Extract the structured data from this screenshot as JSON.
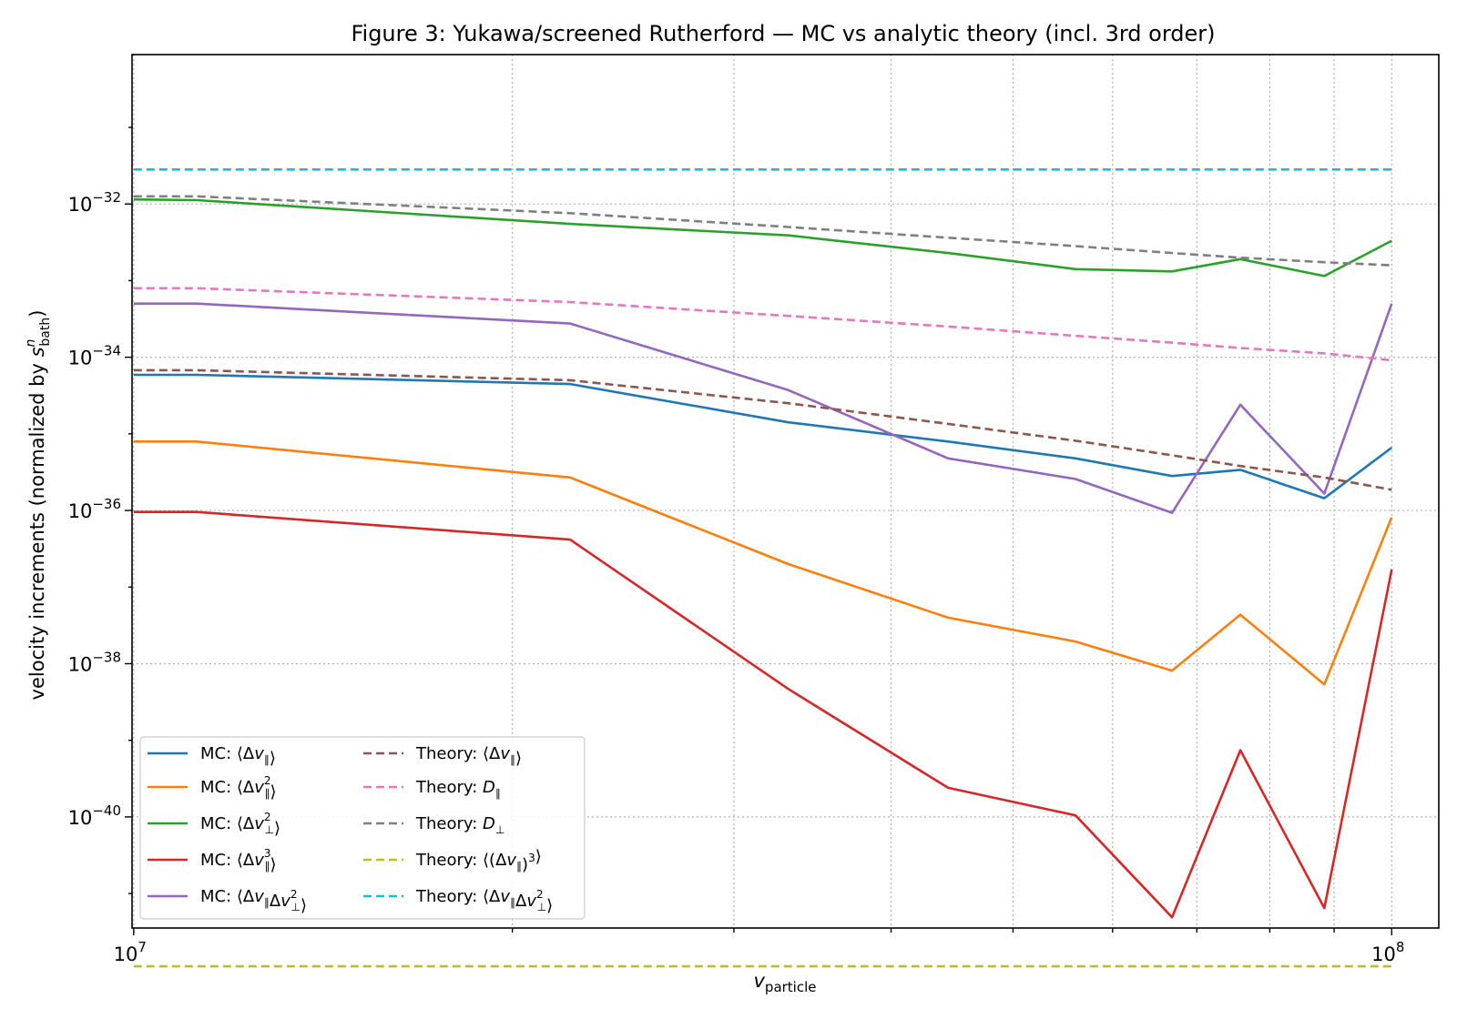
{
  "chart_data": {
    "type": "line",
    "title": "Figure 3: Yukawa/screened Rutherford — MC vs analytic theory (incl. 3rd order)",
    "xlabel_main": "v",
    "xlabel_sub": "particle",
    "ylabel_main": "velocity increments (normalized by ",
    "ylabel_var": "s",
    "ylabel_sup": "n",
    "ylabel_sub": "bath",
    "ylabel_close": ")",
    "x_scale": "log",
    "y_scale": "log",
    "xlim": [
      9970000.0,
      109000000.0
    ],
    "ylim_exp": [
      -41.45,
      -30.05
    ],
    "grid": true,
    "legend_position": "lower left",
    "x_ticks": [
      {
        "value": 10000000.0,
        "base": "10",
        "exp": "7"
      },
      {
        "value": 100000000.0,
        "base": "10",
        "exp": "8"
      }
    ],
    "y_ticks": [
      {
        "exp_value": -32,
        "base": "10",
        "exp": "−32"
      },
      {
        "exp_value": -34,
        "base": "10",
        "exp": "−34"
      },
      {
        "exp_value": -36,
        "base": "10",
        "exp": "−36"
      },
      {
        "exp_value": -38,
        "base": "10",
        "exp": "−38"
      },
      {
        "exp_value": -40,
        "base": "10",
        "exp": "−40"
      }
    ],
    "x": [
      10000000.0,
      11220000.0,
      22230000.0,
      33150000.0,
      44400000.0,
      56060000.0,
      66900000.0,
      75800000.0,
      88400000.0,
      100000000.0
    ],
    "series": [
      {
        "name": "MC: ⟨Δv∥⟩",
        "color": "#1f77b4",
        "style": "solid",
        "y_log10": [
          -34.23,
          -34.23,
          -34.35,
          -34.85,
          -35.1,
          -35.32,
          -35.55,
          -35.47,
          -35.84,
          -35.18
        ]
      },
      {
        "name": "MC: ⟨Δv∥²⟩",
        "color": "#ff7f0e",
        "style": "solid",
        "y_log10": [
          -35.1,
          -35.1,
          -35.57,
          -36.7,
          -37.4,
          -37.71,
          -38.09,
          -37.36,
          -38.27,
          -36.09
        ]
      },
      {
        "name": "MC: ⟨Δv⊥²⟩",
        "color": "#2ca02c",
        "style": "solid",
        "y_log10": [
          -31.94,
          -31.95,
          -32.26,
          -32.41,
          -32.64,
          -32.85,
          -32.88,
          -32.72,
          -32.94,
          -32.48
        ]
      },
      {
        "name": "MC: ⟨Δv∥³⟩",
        "color": "#d62728",
        "style": "solid",
        "y_log10": [
          -36.02,
          -36.02,
          -36.38,
          -38.33,
          -39.62,
          -39.98,
          -41.31,
          -39.13,
          -41.19,
          -36.77
        ]
      },
      {
        "name": "MC: ⟨Δv∥Δv⊥²⟩",
        "color": "#9467bd",
        "style": "solid",
        "y_log10": [
          -33.3,
          -33.3,
          -33.56,
          -34.43,
          -35.32,
          -35.59,
          -36.03,
          -34.62,
          -35.78,
          -33.3
        ]
      },
      {
        "name": "Theory: ⟨Δv∥⟩",
        "color": "#8c564b",
        "style": "dashed",
        "y_log10": [
          -34.17,
          -34.17,
          -34.3,
          -34.6,
          -34.87,
          -35.09,
          -35.28,
          -35.42,
          -35.57,
          -35.73
        ]
      },
      {
        "name": "Theory: D∥",
        "color": "#e377c2",
        "style": "dashed",
        "y_log10": [
          -33.1,
          -33.1,
          -33.28,
          -33.46,
          -33.6,
          -33.72,
          -33.81,
          -33.88,
          -33.95,
          -34.04
        ]
      },
      {
        "name": "Theory: D⊥",
        "color": "#7f7f7f",
        "style": "dashed",
        "y_log10": [
          -31.9,
          -31.9,
          -32.12,
          -32.3,
          -32.44,
          -32.55,
          -32.64,
          -32.7,
          -32.76,
          -32.8
        ]
      },
      {
        "name": "Theory: ⟨(Δv∥)³⟩",
        "color": "#bcbd22",
        "style": "dashed",
        "y_log10": [
          -50,
          -50,
          -50,
          -50,
          -50,
          -50,
          -50,
          -50,
          -50,
          -50
        ]
      },
      {
        "name": "Theory: ⟨Δv∥Δv⊥²⟩",
        "color": "#17becf",
        "style": "dashed",
        "y_log10": [
          -31.55,
          -31.55,
          -31.55,
          -31.55,
          -31.55,
          -31.55,
          -31.55,
          -31.55,
          -31.55,
          -31.55
        ]
      }
    ],
    "legend": [
      {
        "prefix": "MC: ⟨Δ",
        "var": "v",
        "sub": "∥",
        "sup": "",
        "mid": "",
        "var2": "",
        "sub2": "",
        "sup2": "",
        "suffix": "⟩"
      },
      {
        "prefix": "MC: ⟨Δ",
        "var": "v",
        "sub": "∥",
        "sup": "2",
        "mid": "",
        "var2": "",
        "sub2": "",
        "sup2": "",
        "suffix": "⟩"
      },
      {
        "prefix": "MC: ⟨Δ",
        "var": "v",
        "sub": "⊥",
        "sup": "2",
        "mid": "",
        "var2": "",
        "sub2": "",
        "sup2": "",
        "suffix": "⟩"
      },
      {
        "prefix": "MC: ⟨Δ",
        "var": "v",
        "sub": "∥",
        "sup": "3",
        "mid": "",
        "var2": "",
        "sub2": "",
        "sup2": "",
        "suffix": "⟩"
      },
      {
        "prefix": "MC: ⟨Δ",
        "var": "v",
        "sub": "∥",
        "sup": "",
        "mid": "Δ",
        "var2": "v",
        "sub2": "⊥",
        "sup2": "2",
        "suffix": "⟩"
      },
      {
        "prefix": "Theory: ⟨Δ",
        "var": "v",
        "sub": "∥",
        "sup": "",
        "mid": "",
        "var2": "",
        "sub2": "",
        "sup2": "",
        "suffix": "⟩"
      },
      {
        "prefix": "Theory: ",
        "var": "D",
        "sub": "∥",
        "sup": "",
        "mid": "",
        "var2": "",
        "sub2": "",
        "sup2": "",
        "suffix": ""
      },
      {
        "prefix": "Theory: ",
        "var": "D",
        "sub": "⊥",
        "sup": "",
        "mid": "",
        "var2": "",
        "sub2": "",
        "sup2": "",
        "suffix": ""
      },
      {
        "prefix": "Theory: ⟨(Δ",
        "var": "v",
        "sub": "∥",
        "sup": "",
        "mid": ")",
        "var2": "",
        "sub2": "",
        "sup2": "3",
        "suffix": "⟩"
      },
      {
        "prefix": "Theory: ⟨Δ",
        "var": "v",
        "sub": "∥",
        "sup": "",
        "mid": "Δ",
        "var2": "v",
        "sub2": "⊥",
        "sup2": "2",
        "suffix": "⟩"
      }
    ]
  }
}
